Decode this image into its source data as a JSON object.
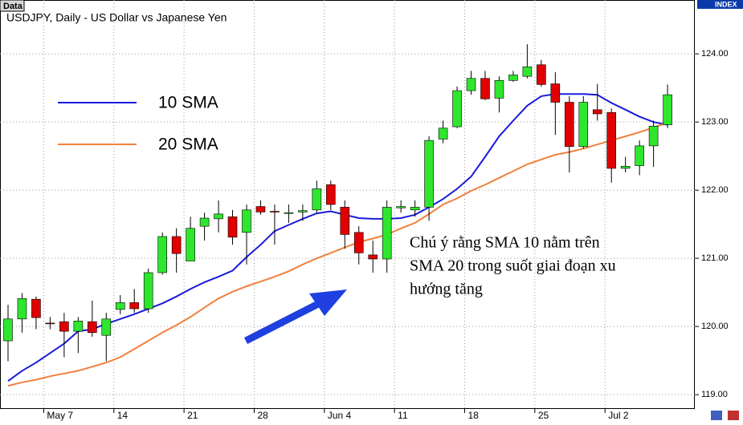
{
  "chart_data": {
    "type": "candlestick",
    "badge": "Data",
    "title": "USDJPY, Daily - US Dollar vs Japanese Yen",
    "axis_tag": "INDEX",
    "categories": [
      null,
      null,
      null,
      "May 7",
      null,
      null,
      null,
      null,
      "14",
      null,
      null,
      null,
      null,
      "21",
      null,
      null,
      null,
      null,
      "28",
      null,
      null,
      null,
      null,
      "Jun 4",
      null,
      null,
      null,
      null,
      "11",
      null,
      null,
      null,
      null,
      "18",
      null,
      null,
      null,
      null,
      "25",
      null,
      null,
      null,
      null,
      "Jul 2",
      null,
      null,
      null,
      null
    ],
    "open": [
      119.79,
      120.11,
      120.4,
      120.05,
      120.07,
      119.93,
      120.07,
      119.87,
      120.25,
      120.35,
      120.26,
      120.79,
      121.32,
      120.96,
      121.47,
      121.58,
      121.61,
      121.38,
      121.76,
      121.69,
      121.66,
      121.68,
      121.71,
      122.08,
      121.75,
      121.38,
      121.05,
      120.99,
      121.74,
      121.71,
      121.75,
      122.75,
      122.93,
      123.46,
      123.64,
      123.35,
      123.61,
      123.67,
      123.84,
      123.56,
      123.29,
      122.64,
      123.18,
      123.14,
      122.32,
      122.36,
      122.65,
      122.96
    ],
    "high": [
      120.32,
      120.49,
      120.44,
      120.14,
      120.2,
      120.14,
      120.38,
      120.2,
      120.46,
      120.55,
      120.85,
      121.38,
      121.44,
      121.61,
      121.67,
      121.85,
      121.71,
      121.79,
      121.85,
      121.79,
      121.79,
      121.79,
      122.14,
      122.14,
      121.85,
      121.47,
      121.26,
      121.85,
      121.85,
      121.85,
      122.79,
      123.02,
      123.52,
      123.75,
      123.75,
      123.67,
      123.75,
      124.14,
      123.91,
      123.73,
      123.38,
      123.38,
      123.56,
      123.2,
      122.49,
      122.73,
      123.02,
      123.55
    ],
    "low": [
      119.49,
      119.91,
      119.96,
      119.96,
      119.55,
      119.61,
      119.85,
      119.49,
      120.18,
      120.2,
      120.2,
      120.76,
      120.79,
      120.96,
      121.26,
      121.38,
      121.2,
      120.91,
      121.64,
      121.2,
      121.52,
      121.55,
      121.67,
      121.71,
      121.14,
      120.91,
      120.79,
      120.79,
      121.67,
      121.61,
      121.55,
      122.69,
      122.91,
      123.4,
      123.32,
      123.14,
      123.59,
      123.64,
      123.52,
      122.81,
      122.26,
      122.61,
      123.02,
      122.11,
      122.26,
      122.22,
      122.34,
      122.91
    ],
    "close": [
      120.11,
      120.41,
      120.13,
      120.04,
      119.93,
      120.08,
      119.91,
      120.11,
      120.35,
      120.26,
      120.79,
      121.32,
      121.07,
      121.44,
      121.59,
      121.65,
      121.31,
      121.71,
      121.68,
      121.68,
      121.67,
      121.7,
      122.02,
      121.79,
      121.35,
      121.08,
      120.99,
      121.75,
      121.76,
      121.75,
      122.73,
      122.91,
      123.46,
      123.64,
      123.34,
      123.61,
      123.69,
      123.81,
      123.55,
      123.29,
      122.64,
      123.29,
      123.12,
      122.32,
      122.35,
      122.65,
      122.94,
      123.4
    ],
    "up_color": "#2ee62e",
    "down_color": "#e00000",
    "series": [
      {
        "name": "10 SMA",
        "color": "#1a1adc",
        "values": [
          119.2,
          119.35,
          119.47,
          119.61,
          119.75,
          119.93,
          119.96,
          120.04,
          120.11,
          120.18,
          120.26,
          120.34,
          120.44,
          120.55,
          120.65,
          120.73,
          120.82,
          121.02,
          121.2,
          121.4,
          121.49,
          121.58,
          121.66,
          121.69,
          121.64,
          121.59,
          121.58,
          121.58,
          121.59,
          121.64,
          121.75,
          121.87,
          122.02,
          122.2,
          122.49,
          122.79,
          123.02,
          123.24,
          123.38,
          123.41,
          123.41,
          123.41,
          123.4,
          123.28,
          123.18,
          123.08,
          123.0,
          122.96
        ]
      },
      {
        "name": "20 SMA",
        "color": "#f0803c",
        "values": [
          119.13,
          119.18,
          119.22,
          119.27,
          119.31,
          119.35,
          119.41,
          119.47,
          119.55,
          119.67,
          119.79,
          119.91,
          120.02,
          120.14,
          120.28,
          120.41,
          120.51,
          120.59,
          120.66,
          120.73,
          120.81,
          120.91,
          121.0,
          121.08,
          121.16,
          121.24,
          121.29,
          121.35,
          121.44,
          121.52,
          121.65,
          121.79,
          121.88,
          121.99,
          122.08,
          122.18,
          122.28,
          122.38,
          122.45,
          122.52,
          122.56,
          122.61,
          122.67,
          122.73,
          122.79,
          122.85,
          122.92,
          122.99
        ]
      }
    ],
    "ylim": [
      118.79,
      124.79
    ],
    "yticks": [
      {
        "value": 119,
        "label": "119.00"
      },
      {
        "value": 120,
        "label": "120.00"
      },
      {
        "value": 121,
        "label": "121.00"
      },
      {
        "value": 122,
        "label": "122.00"
      },
      {
        "value": 123,
        "label": "123.00"
      },
      {
        "value": 124,
        "label": "124.00"
      }
    ],
    "grid": true,
    "annotation": [
      "Chú ý rằng SMA 10 nằm trên",
      "SMA 20 trong suốt giai đoạn xu",
      "hướng tăng"
    ]
  }
}
